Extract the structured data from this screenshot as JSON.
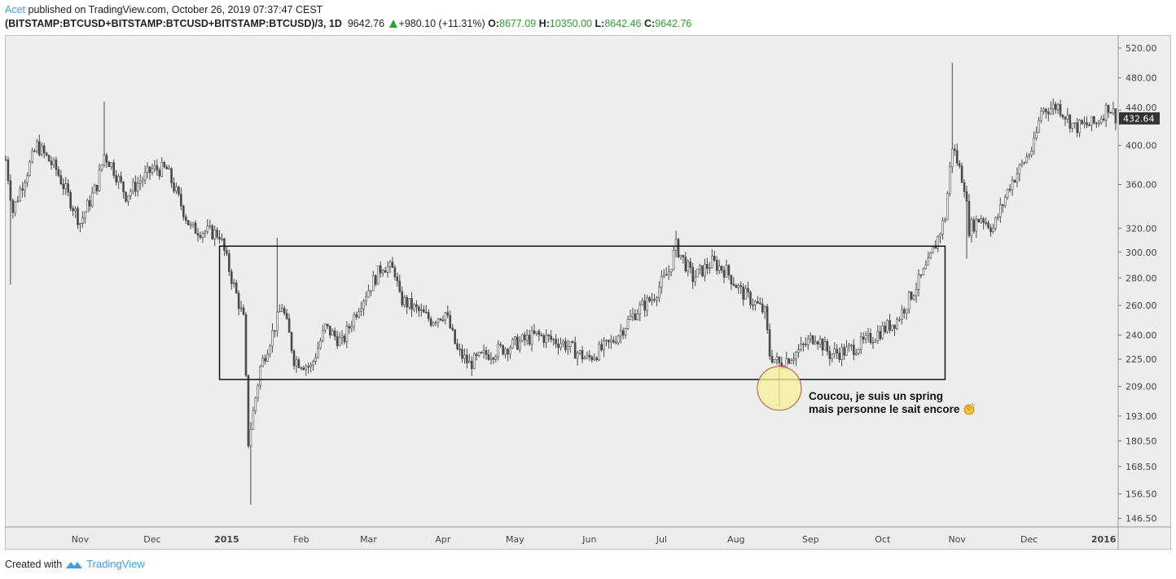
{
  "header": {
    "author": "Acet",
    "published": "published on TradingView.com, October 26, 2019 07:37:47 CEST",
    "symbol": "(BITSTAMP:BTCUSD+BITSTAMP:BTCUSD+BITSTAMP:BTCUSD)/3, 1D",
    "last": "9642.76",
    "change": "+980.10 (+11.31%)",
    "o_label": "O:",
    "o": "8677.09",
    "h_label": "H:",
    "h": "10350.00",
    "l_label": "L:",
    "l": "8642.46",
    "c_label": "C:",
    "c": "9642.76"
  },
  "footer": {
    "created_with": "Created with",
    "brand": "TradingView"
  },
  "annotation": {
    "line1": "Coucou, je suis un spring",
    "line2": "mais personne le sait encore",
    "emoji": "clapping-hands"
  },
  "colors": {
    "up": "#ffffff",
    "down": "#4a4a4a",
    "wick": "#4a4a4a",
    "bg": "#ededed",
    "highlight": "#f5f29a",
    "highlight_border": "#c0503a",
    "last_price_bg": "#333333"
  },
  "chart_data": {
    "type": "candlestick",
    "scale": "log",
    "start_date": "2014-10-01",
    "ylim": [
      140,
      540
    ],
    "y_ticks": [
      "520.00",
      "480.00",
      "440.00",
      "400.00",
      "360.00",
      "320.00",
      "300.00",
      "280.00",
      "260.00",
      "240.00",
      "225.00",
      "209.00",
      "193.00",
      "180.50",
      "168.50",
      "156.50",
      "146.50"
    ],
    "x_ticks": [
      {
        "label": "Nov",
        "day": 31
      },
      {
        "label": "Dec",
        "day": 61
      },
      {
        "label": "2015",
        "day": 92
      },
      {
        "label": "Feb",
        "day": 123
      },
      {
        "label": "Mar",
        "day": 151
      },
      {
        "label": "Apr",
        "day": 182
      },
      {
        "label": "May",
        "day": 212
      },
      {
        "label": "Jun",
        "day": 243
      },
      {
        "label": "Jul",
        "day": 273
      },
      {
        "label": "Aug",
        "day": 304
      },
      {
        "label": "Sep",
        "day": 335
      },
      {
        "label": "Oct",
        "day": 365
      },
      {
        "label": "Nov",
        "day": 396
      },
      {
        "label": "Dec",
        "day": 426
      },
      {
        "label": "2016",
        "day": 457
      }
    ],
    "last_price": "432.64",
    "close_keypoints": [
      [
        0,
        385
      ],
      [
        3,
        335
      ],
      [
        6,
        355
      ],
      [
        13,
        400
      ],
      [
        21,
        375
      ],
      [
        31,
        325
      ],
      [
        38,
        360
      ],
      [
        41,
        390
      ],
      [
        44,
        380
      ],
      [
        50,
        350
      ],
      [
        61,
        375
      ],
      [
        67,
        375
      ],
      [
        77,
        320
      ],
      [
        89,
        315
      ],
      [
        94,
        280
      ],
      [
        99,
        250
      ],
      [
        101,
        180
      ],
      [
        103,
        195
      ],
      [
        106,
        220
      ],
      [
        115,
        260
      ],
      [
        118,
        240
      ],
      [
        120,
        225
      ],
      [
        127,
        220
      ],
      [
        133,
        245
      ],
      [
        140,
        235
      ],
      [
        147,
        260
      ],
      [
        157,
        290
      ],
      [
        162,
        285
      ],
      [
        164,
        265
      ],
      [
        177,
        250
      ],
      [
        183,
        255
      ],
      [
        188,
        230
      ],
      [
        193,
        222
      ],
      [
        200,
        228
      ],
      [
        208,
        232
      ],
      [
        221,
        240
      ],
      [
        232,
        235
      ],
      [
        242,
        225
      ],
      [
        252,
        235
      ],
      [
        262,
        255
      ],
      [
        269,
        265
      ],
      [
        276,
        285
      ],
      [
        279,
        305
      ],
      [
        286,
        280
      ],
      [
        294,
        292
      ],
      [
        300,
        285
      ],
      [
        306,
        270
      ],
      [
        313,
        260
      ],
      [
        316,
        255
      ],
      [
        318,
        228
      ],
      [
        322,
        222
      ],
      [
        330,
        230
      ],
      [
        337,
        240
      ],
      [
        343,
        228
      ],
      [
        350,
        230
      ],
      [
        357,
        235
      ],
      [
        371,
        250
      ],
      [
        384,
        290
      ],
      [
        391,
        330
      ],
      [
        394,
        400
      ],
      [
        399,
        360
      ],
      [
        401,
        320
      ],
      [
        406,
        330
      ],
      [
        411,
        320
      ],
      [
        418,
        360
      ],
      [
        428,
        400
      ],
      [
        431,
        440
      ],
      [
        438,
        445
      ],
      [
        445,
        420
      ],
      [
        454,
        425
      ],
      [
        459,
        445
      ],
      [
        462,
        432.64
      ]
    ],
    "spikes": [
      {
        "day": 2,
        "low": 275
      },
      {
        "day": 41,
        "high": 450
      },
      {
        "day": 102,
        "low": 152
      },
      {
        "day": 113,
        "high": 312
      },
      {
        "day": 279,
        "high": 318
      },
      {
        "day": 322,
        "low": 198
      },
      {
        "day": 394,
        "high": 500
      },
      {
        "day": 400,
        "low": 295
      }
    ],
    "range_box": {
      "from_day": 89,
      "to_day": 391,
      "high": 305,
      "low": 213
    },
    "highlight_day": 322,
    "highlight_price": 208
  }
}
